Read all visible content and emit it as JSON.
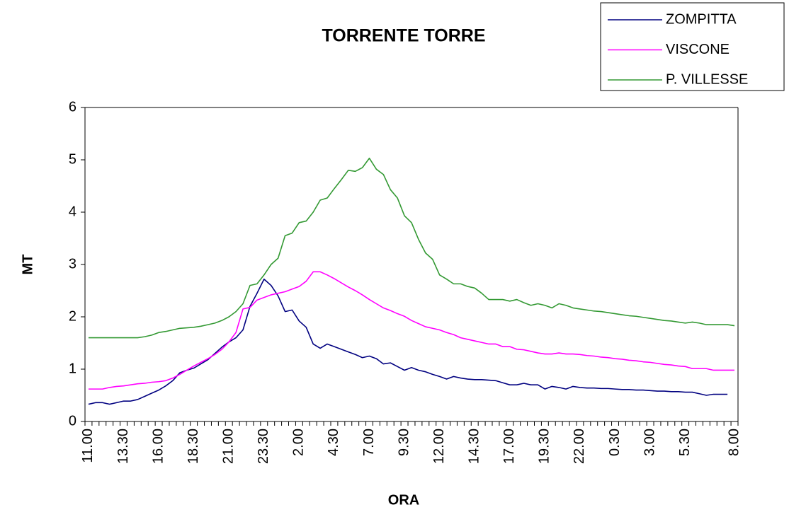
{
  "chart_data": {
    "type": "line",
    "title": "TORRENTE TORRE",
    "x_label": "ORA",
    "y_label": "MT",
    "grid": false,
    "legend": "top-right",
    "categories": [
      "11.00",
      null,
      null,
      null,
      null,
      "13.30",
      null,
      null,
      null,
      null,
      "16.00",
      null,
      null,
      null,
      null,
      "18.30",
      null,
      null,
      null,
      null,
      "21.00",
      null,
      null,
      null,
      null,
      "23.30",
      null,
      null,
      null,
      null,
      "2.00",
      null,
      null,
      null,
      null,
      "4.30",
      null,
      null,
      null,
      null,
      "7.00",
      null,
      null,
      null,
      null,
      "9.30",
      null,
      null,
      null,
      null,
      "12.00",
      null,
      null,
      null,
      null,
      "14.30",
      null,
      null,
      null,
      null,
      "17.00",
      null,
      null,
      null,
      null,
      "19.30",
      null,
      null,
      null,
      null,
      "22.00",
      null,
      null,
      null,
      null,
      "0.30",
      null,
      null,
      null,
      null,
      "3.00",
      null,
      null,
      null,
      null,
      "5.30",
      null,
      null,
      null,
      null,
      null,
      null,
      "8.00"
    ],
    "ylim": [
      0,
      6
    ],
    "yticks": [
      0,
      1,
      2,
      3,
      4,
      5,
      6
    ],
    "series": [
      {
        "name": "ZOMPITTA",
        "color": "#000080",
        "values": [
          0.33,
          0.36,
          0.36,
          0.33,
          0.36,
          0.39,
          0.39,
          0.42,
          0.48,
          0.54,
          0.6,
          0.68,
          0.78,
          0.93,
          0.98,
          1.02,
          1.1,
          1.18,
          1.3,
          1.42,
          1.52,
          1.6,
          1.75,
          2.2,
          2.45,
          2.72,
          2.6,
          2.4,
          2.1,
          2.13,
          1.92,
          1.8,
          1.48,
          1.4,
          1.48,
          1.43,
          1.38,
          1.33,
          1.28,
          1.22,
          1.25,
          1.2,
          1.1,
          1.12,
          1.05,
          0.98,
          1.03,
          0.98,
          0.95,
          0.9,
          0.86,
          0.81,
          0.86,
          0.83,
          0.81,
          0.8,
          0.8,
          0.79,
          0.78,
          0.74,
          0.7,
          0.7,
          0.73,
          0.7,
          0.7,
          0.62,
          0.67,
          0.65,
          0.62,
          0.67,
          0.65,
          0.64,
          0.64,
          0.63,
          0.63,
          0.62,
          0.61,
          0.61,
          0.6,
          0.6,
          0.59,
          0.58,
          0.58,
          0.57,
          0.57,
          0.56,
          0.56,
          0.53,
          0.5,
          0.52,
          0.52,
          0.52,
          null
        ]
      },
      {
        "name": "VISCONE",
        "color": "#ff00ff",
        "values": [
          0.62,
          0.62,
          0.62,
          0.65,
          0.67,
          0.68,
          0.7,
          0.72,
          0.73,
          0.75,
          0.76,
          0.78,
          0.83,
          0.9,
          0.98,
          1.06,
          1.13,
          1.2,
          1.28,
          1.38,
          1.52,
          1.7,
          2.15,
          2.18,
          2.32,
          2.37,
          2.42,
          2.45,
          2.48,
          2.53,
          2.58,
          2.68,
          2.86,
          2.86,
          2.8,
          2.73,
          2.65,
          2.57,
          2.5,
          2.42,
          2.33,
          2.25,
          2.17,
          2.12,
          2.06,
          2.01,
          1.93,
          1.87,
          1.81,
          1.78,
          1.75,
          1.7,
          1.66,
          1.6,
          1.57,
          1.54,
          1.51,
          1.48,
          1.48,
          1.43,
          1.43,
          1.38,
          1.37,
          1.34,
          1.31,
          1.29,
          1.29,
          1.31,
          1.29,
          1.29,
          1.28,
          1.26,
          1.25,
          1.23,
          1.22,
          1.2,
          1.19,
          1.17,
          1.16,
          1.14,
          1.13,
          1.11,
          1.09,
          1.08,
          1.06,
          1.05,
          1.01,
          1.01,
          1.01,
          0.98,
          0.98,
          0.98,
          0.98
        ]
      },
      {
        "name": "P. VILLESSE",
        "color": "#339933",
        "values": [
          1.6,
          1.6,
          1.6,
          1.6,
          1.6,
          1.6,
          1.6,
          1.6,
          1.62,
          1.65,
          1.7,
          1.72,
          1.75,
          1.78,
          1.79,
          1.8,
          1.82,
          1.85,
          1.88,
          1.93,
          2.0,
          2.1,
          2.25,
          2.6,
          2.63,
          2.8,
          3.0,
          3.12,
          3.55,
          3.6,
          3.8,
          3.83,
          4.0,
          4.23,
          4.27,
          4.45,
          4.62,
          4.8,
          4.78,
          4.85,
          5.03,
          4.82,
          4.72,
          4.43,
          4.27,
          3.93,
          3.8,
          3.48,
          3.22,
          3.1,
          2.8,
          2.72,
          2.63,
          2.63,
          2.58,
          2.55,
          2.45,
          2.33,
          2.33,
          2.33,
          2.3,
          2.33,
          2.27,
          2.22,
          2.25,
          2.22,
          2.17,
          2.25,
          2.22,
          2.17,
          2.15,
          2.13,
          2.11,
          2.1,
          2.08,
          2.06,
          2.04,
          2.02,
          2.01,
          1.99,
          1.97,
          1.95,
          1.93,
          1.92,
          1.9,
          1.88,
          1.9,
          1.88,
          1.85,
          1.85,
          1.85,
          1.85,
          1.83
        ]
      }
    ]
  }
}
